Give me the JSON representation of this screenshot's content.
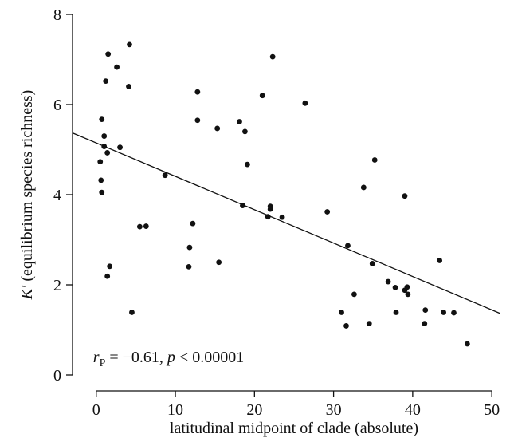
{
  "chart_data": {
    "type": "scatter",
    "title": "",
    "xlabel": "latitudinal midpoint of clade (absolute)",
    "ylabel": {
      "symbol": "K′",
      "rest": " (equilibrium species richness)"
    },
    "xlim": [
      -3,
      52
    ],
    "ylim": [
      0,
      8
    ],
    "xticks": [
      0,
      10,
      20,
      30,
      40,
      50
    ],
    "yticks": [
      0,
      2,
      4,
      6,
      8
    ],
    "grid": false,
    "legend": "none",
    "annotation": {
      "r_symbol": "r",
      "r_subscript": "P",
      "r_value": " = −0.61, ",
      "p_symbol": "p",
      "p_value": " < 0.00001"
    },
    "fit_line": {
      "x": [
        -3,
        51
      ],
      "y": [
        5.37,
        1.37
      ]
    },
    "series": [
      {
        "points": [
          [
            4.2,
            7.33
          ],
          [
            1.5,
            7.12
          ],
          [
            2.6,
            6.83
          ],
          [
            1.2,
            6.52
          ],
          [
            4.1,
            6.4
          ],
          [
            0.7,
            5.67
          ],
          [
            1.0,
            5.3
          ],
          [
            1.0,
            5.07
          ],
          [
            3.0,
            5.05
          ],
          [
            1.4,
            4.93
          ],
          [
            0.5,
            4.73
          ],
          [
            0.6,
            4.32
          ],
          [
            0.7,
            4.05
          ],
          [
            8.7,
            4.43
          ],
          [
            12.8,
            6.28
          ],
          [
            12.8,
            5.65
          ],
          [
            15.3,
            5.47
          ],
          [
            5.5,
            3.29
          ],
          [
            6.3,
            3.3
          ],
          [
            12.2,
            3.36
          ],
          [
            11.8,
            2.83
          ],
          [
            11.7,
            2.4
          ],
          [
            1.7,
            2.41
          ],
          [
            1.4,
            2.19
          ],
          [
            4.5,
            1.39
          ],
          [
            15.5,
            2.5
          ],
          [
            18.1,
            5.62
          ],
          [
            18.8,
            5.4
          ],
          [
            19.1,
            4.67
          ],
          [
            18.5,
            3.76
          ],
          [
            21.0,
            6.2
          ],
          [
            22.3,
            7.06
          ],
          [
            22.0,
            3.74
          ],
          [
            22.0,
            3.68
          ],
          [
            21.7,
            3.51
          ],
          [
            23.5,
            3.5
          ],
          [
            26.4,
            6.03
          ],
          [
            29.2,
            3.62
          ],
          [
            33.8,
            4.16
          ],
          [
            35.2,
            4.77
          ],
          [
            31.8,
            2.87
          ],
          [
            34.9,
            2.47
          ],
          [
            32.6,
            1.79
          ],
          [
            31.0,
            1.39
          ],
          [
            31.6,
            1.09
          ],
          [
            34.5,
            1.14
          ],
          [
            39.0,
            3.97
          ],
          [
            36.9,
            2.07
          ],
          [
            37.8,
            1.94
          ],
          [
            39.0,
            1.88
          ],
          [
            39.3,
            1.95
          ],
          [
            39.4,
            1.79
          ],
          [
            37.9,
            1.39
          ],
          [
            41.6,
            1.44
          ],
          [
            41.5,
            1.14
          ],
          [
            43.9,
            1.39
          ],
          [
            45.2,
            1.38
          ],
          [
            43.4,
            2.54
          ],
          [
            46.9,
            0.69
          ]
        ]
      }
    ]
  }
}
